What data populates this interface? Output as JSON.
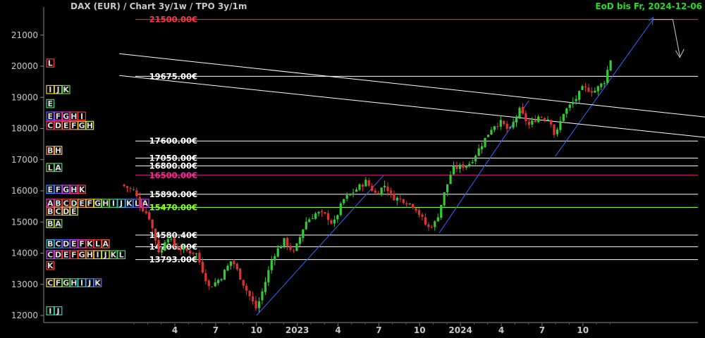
{
  "header": {
    "title": "DAX (EUR) /  Chart 3y/1w / TPO 3y/1m",
    "eod": "EoD bis Fr, 2024-12-06"
  },
  "colors": {
    "bg": "#000000",
    "axis": "#888888",
    "text": "#c8c8c8",
    "up": "#33cc33",
    "down": "#dd3333",
    "trend": "#3366ff",
    "level": "#ffffff",
    "red_level": "#ff3344",
    "magenta_level": "#ff2299",
    "green_level": "#88ff22"
  },
  "chart_data": {
    "type": "candlestick",
    "ylim": [
      11900,
      21600
    ],
    "yticks": [
      12000,
      13000,
      14000,
      15000,
      16000,
      17000,
      18000,
      19000,
      20000,
      21000
    ],
    "x_period": [
      "2021-12",
      "2024-12"
    ],
    "xticks": [
      {
        "label": "4",
        "t": 2022.25
      },
      {
        "label": "7",
        "t": 2022.5
      },
      {
        "label": "10",
        "t": 2022.75
      },
      {
        "label": "2023",
        "t": 2023.0
      },
      {
        "label": "4",
        "t": 2023.25
      },
      {
        "label": "7",
        "t": 2023.5
      },
      {
        "label": "10",
        "t": 2023.75
      },
      {
        "label": "2024",
        "t": 2024.0
      },
      {
        "label": "4",
        "t": 2024.25
      },
      {
        "label": "7",
        "t": 2024.5
      },
      {
        "label": "10",
        "t": 2024.75
      }
    ],
    "levels": [
      {
        "label": "21500.00€",
        "value": 21500,
        "color": "red"
      },
      {
        "label": "19675.00€",
        "value": 19675,
        "color": "white"
      },
      {
        "label": "17600.00€",
        "value": 17600,
        "color": "white"
      },
      {
        "label": "17050.00€",
        "value": 17050,
        "color": "white"
      },
      {
        "label": "16800.00€",
        "value": 16800,
        "color": "white"
      },
      {
        "label": "16500.00€",
        "value": 16500,
        "color": "magenta"
      },
      {
        "label": "15890.00€",
        "value": 15890,
        "color": "white"
      },
      {
        "label": "15470.00€",
        "value": 15470,
        "color": "green"
      },
      {
        "label": "14580.40€",
        "value": 14580,
        "color": "white"
      },
      {
        "label": "14206.00€",
        "value": 14206,
        "color": "white"
      },
      {
        "label": "13793.00€",
        "value": 13793,
        "color": "white"
      }
    ],
    "close_path": [
      [
        2021.92,
        16200
      ],
      [
        2022.0,
        16000
      ],
      [
        2022.04,
        15500
      ],
      [
        2022.09,
        15200
      ],
      [
        2022.16,
        13900
      ],
      [
        2022.2,
        14600
      ],
      [
        2022.25,
        14200
      ],
      [
        2022.3,
        14100
      ],
      [
        2022.38,
        14000
      ],
      [
        2022.46,
        12900
      ],
      [
        2022.53,
        13200
      ],
      [
        2022.6,
        13800
      ],
      [
        2022.68,
        12900
      ],
      [
        2022.75,
        12200
      ],
      [
        2022.8,
        13000
      ],
      [
        2022.85,
        13900
      ],
      [
        2022.92,
        14400
      ],
      [
        2022.98,
        14000
      ],
      [
        2023.05,
        15000
      ],
      [
        2023.12,
        15300
      ],
      [
        2023.18,
        15200
      ],
      [
        2023.22,
        14900
      ],
      [
        2023.28,
        15700
      ],
      [
        2023.35,
        16000
      ],
      [
        2023.42,
        16300
      ],
      [
        2023.48,
        15900
      ],
      [
        2023.54,
        16200
      ],
      [
        2023.58,
        15800
      ],
      [
        2023.65,
        15700
      ],
      [
        2023.72,
        15500
      ],
      [
        2023.8,
        14800
      ],
      [
        2023.85,
        15000
      ],
      [
        2023.9,
        15900
      ],
      [
        2023.95,
        16700
      ],
      [
        2024.02,
        16800
      ],
      [
        2024.06,
        16900
      ],
      [
        2024.12,
        17400
      ],
      [
        2024.2,
        18100
      ],
      [
        2024.25,
        18200
      ],
      [
        2024.3,
        17900
      ],
      [
        2024.36,
        18600
      ],
      [
        2024.42,
        18100
      ],
      [
        2024.48,
        18400
      ],
      [
        2024.55,
        18300
      ],
      [
        2024.58,
        17700
      ],
      [
        2024.63,
        18500
      ],
      [
        2024.7,
        18900
      ],
      [
        2024.75,
        19300
      ],
      [
        2024.82,
        19200
      ],
      [
        2024.88,
        19500
      ],
      [
        2024.93,
        20400
      ]
    ],
    "trendlines": [
      {
        "from": [
          2022.75,
          12000
        ],
        "to": [
          2023.53,
          16500
        ],
        "color": "blue"
      },
      {
        "from": [
          2023.87,
          14650
        ],
        "to": [
          2024.42,
          18900
        ],
        "color": "blue"
      },
      {
        "from": [
          2024.58,
          17100
        ],
        "to": [
          2025.18,
          21500
        ],
        "color": "blue"
      },
      {
        "from": [
          2021.91,
          20400
        ],
        "to": [
          2025.8,
          18200
        ],
        "color": "white"
      },
      {
        "from": [
          2021.91,
          19700
        ],
        "to": [
          2025.8,
          17550
        ],
        "color": "white"
      }
    ],
    "tpo_profile": [
      {
        "price": 20100,
        "letters": "L"
      },
      {
        "price": 19250,
        "letters": "IJK"
      },
      {
        "price": 18800,
        "letters": "E"
      },
      {
        "price": 18400,
        "letters": "EFGHI"
      },
      {
        "price": 18100,
        "letters": "CDEFGH"
      },
      {
        "price": 17300,
        "letters": "BH"
      },
      {
        "price": 16750,
        "letters": "LA"
      },
      {
        "price": 16050,
        "letters": "EFGHK"
      },
      {
        "price": 15600,
        "letters": "ABCDEFGHIJKLA"
      },
      {
        "price": 15350,
        "letters": "BCDE"
      },
      {
        "price": 14950,
        "letters": "BA"
      },
      {
        "price": 14300,
        "letters": "BCDEFKLA"
      },
      {
        "price": 13950,
        "letters": "CDEFGHIJKL"
      },
      {
        "price": 13600,
        "letters": "K"
      },
      {
        "price": 13050,
        "letters": "CFGHIJK"
      },
      {
        "price": 12150,
        "letters": "IJ"
      }
    ]
  }
}
